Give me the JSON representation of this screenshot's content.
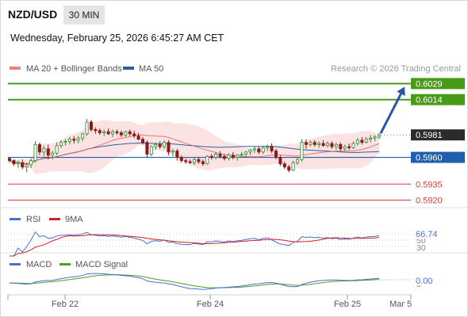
{
  "header": {
    "symbol": "NZD/USD",
    "timeframe": "30 MIN",
    "datetime": "Wednesday, February 25, 2026 6:45:27 AM CET"
  },
  "legend": {
    "ma20_label": "MA 20 + Bollinger Bands",
    "ma50_label": "MA 50",
    "credit": "Research © 2026 Trading Central"
  },
  "colors": {
    "ma20": "#e05a5a",
    "ma50": "#2f5e9e",
    "bollinger_fill": "#fbdede",
    "candle_up": "#2e8b2e",
    "candle_down": "#8b1a1a",
    "resistance": "#4a9a1a",
    "pivot": "#1f5fb0",
    "support": "#d04040",
    "last_price": "#2b2b2b",
    "arrow": "#2458a6",
    "rsi": "#4a6fd0",
    "rsi_ma": "#d02020",
    "macd": "#4a6fd0",
    "macd_signal": "#4aa020"
  },
  "levels": [
    {
      "price": "0.6029",
      "type": "resistance"
    },
    {
      "price": "0.6014",
      "type": "resistance"
    },
    {
      "price": "0.5981",
      "type": "last"
    },
    {
      "price": "0.5960",
      "type": "pivot"
    },
    {
      "price": "0.5935",
      "type": "support"
    },
    {
      "price": "0.5920",
      "type": "support"
    }
  ],
  "rsi_panel": {
    "rsi_label": "RSI",
    "ma_label": "9MA",
    "value": "66.74",
    "ticks": [
      "70",
      "50",
      "30"
    ]
  },
  "macd_panel": {
    "macd_label": "MACD",
    "signal_label": "MACD Signal",
    "value": "0.00",
    "tick": "0"
  },
  "x_axis": {
    "ticks": [
      "Feb 22",
      "Feb 24",
      "Feb 25",
      "Mar 5"
    ]
  },
  "chart_data": {
    "type": "candlestick",
    "symbol": "NZD/USD",
    "interval": "30 MIN",
    "price_range": [
      0.5913,
      0.6036
    ],
    "x_ticks": [
      "Feb 22",
      "Feb 24",
      "Feb 25",
      "Mar 5"
    ],
    "candles_ohlc": [
      [
        0.5959,
        0.596,
        0.5955,
        0.5957
      ],
      [
        0.5957,
        0.5958,
        0.5952,
        0.5954
      ],
      [
        0.5954,
        0.5957,
        0.595,
        0.5955
      ],
      [
        0.5955,
        0.5958,
        0.5949,
        0.5951
      ],
      [
        0.5951,
        0.5955,
        0.5946,
        0.5953
      ],
      [
        0.5953,
        0.5959,
        0.595,
        0.5957
      ],
      [
        0.5957,
        0.5975,
        0.5955,
        0.5972
      ],
      [
        0.5972,
        0.5974,
        0.5962,
        0.5965
      ],
      [
        0.5965,
        0.5971,
        0.5961,
        0.5968
      ],
      [
        0.5968,
        0.5972,
        0.5958,
        0.5962
      ],
      [
        0.5962,
        0.5966,
        0.5958,
        0.5964
      ],
      [
        0.5964,
        0.5974,
        0.5962,
        0.5971
      ],
      [
        0.5971,
        0.5976,
        0.5969,
        0.5974
      ],
      [
        0.5974,
        0.5977,
        0.5971,
        0.5975
      ],
      [
        0.5975,
        0.5979,
        0.5972,
        0.5977
      ],
      [
        0.5977,
        0.598,
        0.5973,
        0.5976
      ],
      [
        0.5976,
        0.598,
        0.5973,
        0.5978
      ],
      [
        0.5978,
        0.5983,
        0.5975,
        0.5982
      ],
      [
        0.5982,
        0.5996,
        0.598,
        0.5993
      ],
      [
        0.5993,
        0.5995,
        0.5984,
        0.5986
      ],
      [
        0.5986,
        0.5988,
        0.5982,
        0.5985
      ],
      [
        0.5985,
        0.5987,
        0.5981,
        0.5983
      ],
      [
        0.5983,
        0.5986,
        0.598,
        0.5984
      ],
      [
        0.5984,
        0.5987,
        0.5981,
        0.5982
      ],
      [
        0.5982,
        0.5986,
        0.5979,
        0.5984
      ],
      [
        0.5984,
        0.5986,
        0.5981,
        0.5983
      ],
      [
        0.5983,
        0.5985,
        0.5979,
        0.5981
      ],
      [
        0.5981,
        0.5985,
        0.5979,
        0.5984
      ],
      [
        0.5984,
        0.5986,
        0.598,
        0.5982
      ],
      [
        0.5982,
        0.5985,
        0.5978,
        0.598
      ],
      [
        0.598,
        0.5983,
        0.5976,
        0.5977
      ],
      [
        0.5977,
        0.5979,
        0.5972,
        0.5974
      ],
      [
        0.5974,
        0.5976,
        0.596,
        0.5963
      ],
      [
        0.5963,
        0.5971,
        0.5961,
        0.597
      ],
      [
        0.597,
        0.5974,
        0.5967,
        0.5972
      ],
      [
        0.5972,
        0.5975,
        0.5968,
        0.597
      ],
      [
        0.597,
        0.5976,
        0.5968,
        0.5974
      ],
      [
        0.5974,
        0.5976,
        0.5962,
        0.5965
      ],
      [
        0.5965,
        0.5968,
        0.5961,
        0.5966
      ],
      [
        0.5966,
        0.5968,
        0.5957,
        0.596
      ],
      [
        0.596,
        0.5962,
        0.5955,
        0.5957
      ],
      [
        0.5957,
        0.5959,
        0.5954,
        0.5956
      ],
      [
        0.5956,
        0.5958,
        0.5954,
        0.5955
      ],
      [
        0.5955,
        0.596,
        0.5953,
        0.5958
      ],
      [
        0.5958,
        0.596,
        0.5954,
        0.5956
      ],
      [
        0.5956,
        0.5958,
        0.5952,
        0.5954
      ],
      [
        0.5954,
        0.5962,
        0.5953,
        0.5961
      ],
      [
        0.5961,
        0.5963,
        0.5958,
        0.596
      ],
      [
        0.596,
        0.5965,
        0.5958,
        0.5963
      ],
      [
        0.5963,
        0.5966,
        0.5959,
        0.5961
      ],
      [
        0.5961,
        0.5963,
        0.5957,
        0.5959
      ],
      [
        0.5959,
        0.5964,
        0.5957,
        0.5962
      ],
      [
        0.5962,
        0.5965,
        0.5958,
        0.596
      ],
      [
        0.596,
        0.5963,
        0.5957,
        0.5962
      ],
      [
        0.5962,
        0.5965,
        0.596,
        0.5963
      ],
      [
        0.5963,
        0.5966,
        0.596,
        0.5965
      ],
      [
        0.5965,
        0.5968,
        0.5962,
        0.5967
      ],
      [
        0.5967,
        0.597,
        0.5964,
        0.5968
      ],
      [
        0.5968,
        0.597,
        0.5963,
        0.5965
      ],
      [
        0.5965,
        0.5971,
        0.5963,
        0.5969
      ],
      [
        0.5969,
        0.5972,
        0.5966,
        0.597
      ],
      [
        0.597,
        0.5973,
        0.5964,
        0.5966
      ],
      [
        0.5966,
        0.5968,
        0.5958,
        0.596
      ],
      [
        0.596,
        0.5962,
        0.5952,
        0.5954
      ],
      [
        0.5954,
        0.5956,
        0.5949,
        0.5951
      ],
      [
        0.5951,
        0.5953,
        0.5946,
        0.5948
      ],
      [
        0.5948,
        0.5957,
        0.5947,
        0.5955
      ],
      [
        0.5955,
        0.596,
        0.5953,
        0.5958
      ],
      [
        0.5958,
        0.5977,
        0.5956,
        0.5974
      ],
      [
        0.5974,
        0.5977,
        0.5968,
        0.5972
      ],
      [
        0.5972,
        0.5976,
        0.597,
        0.5974
      ],
      [
        0.5974,
        0.5976,
        0.597,
        0.5972
      ],
      [
        0.5972,
        0.5975,
        0.5969,
        0.5973
      ],
      [
        0.5973,
        0.5976,
        0.597,
        0.5971
      ],
      [
        0.5971,
        0.5975,
        0.5969,
        0.5973
      ],
      [
        0.5973,
        0.5975,
        0.5968,
        0.597
      ],
      [
        0.597,
        0.5974,
        0.5967,
        0.5972
      ],
      [
        0.5972,
        0.5974,
        0.5966,
        0.5968
      ],
      [
        0.5968,
        0.5972,
        0.5966,
        0.597
      ],
      [
        0.597,
        0.5973,
        0.5967,
        0.5969
      ],
      [
        0.5969,
        0.5975,
        0.5968,
        0.5973
      ],
      [
        0.5973,
        0.5978,
        0.5971,
        0.5976
      ],
      [
        0.5976,
        0.5979,
        0.5972,
        0.5974
      ],
      [
        0.5974,
        0.5979,
        0.5973,
        0.5977
      ],
      [
        0.5977,
        0.5981,
        0.5974,
        0.5978
      ],
      [
        0.5978,
        0.5981,
        0.5975,
        0.5979
      ],
      [
        0.5979,
        0.5983,
        0.5977,
        0.5981
      ]
    ],
    "projection": {
      "from": 0.5981,
      "to": 0.6029
    }
  }
}
